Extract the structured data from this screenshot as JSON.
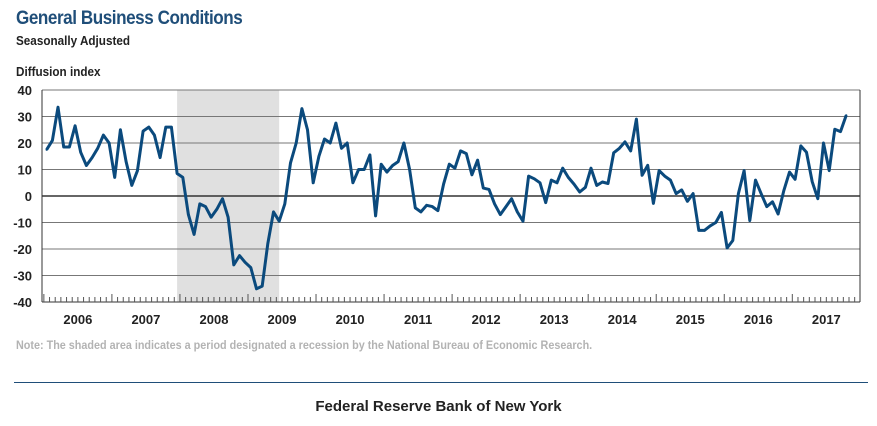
{
  "chart_data": {
    "type": "line",
    "title": "General Business Conditions",
    "subtitle": "Seasonally Adjusted",
    "ylabel": "Diffusion index",
    "xlabel": "",
    "ylim": [
      -40,
      40
    ],
    "yticks": [
      40,
      30,
      20,
      10,
      0,
      -10,
      -20,
      -30,
      -40
    ],
    "x_tick_labels": [
      "2006",
      "2007",
      "2008",
      "2009",
      "2010",
      "2011",
      "2012",
      "2013",
      "2014",
      "2015",
      "2016",
      "2017"
    ],
    "x_start": "2006-01",
    "x_end": "2017-10",
    "frequency": "monthly",
    "grid": true,
    "recession_shading": {
      "start": "2007-12",
      "end": "2009-06",
      "color": "#e0e0e0"
    },
    "line_color": "#0b4a7d",
    "values": [
      17.5,
      21,
      33.5,
      18.5,
      18.5,
      26.5,
      16.5,
      11.5,
      14.5,
      18,
      23,
      20,
      7,
      25,
      13,
      4,
      9.5,
      24.5,
      26,
      23,
      14.5,
      26,
      26,
      8.5,
      7,
      -7,
      -14.5,
      -3,
      -4,
      -8,
      -5,
      -1,
      -8,
      -26,
      -22.5,
      -25,
      -27,
      -35,
      -34,
      -18,
      -6,
      -9.5,
      -3,
      12.5,
      20,
      33,
      25,
      5,
      15,
      21.5,
      20,
      27.5,
      18,
      20,
      5,
      10,
      10,
      15.5,
      -7.5,
      12,
      9,
      11.5,
      13,
      20,
      10,
      -4.5,
      -6,
      -3.5,
      -4,
      -5.5,
      4.5,
      12,
      10.5,
      17,
      16,
      8,
      13.5,
      3,
      2.5,
      -3,
      -7,
      -4,
      -1,
      -6,
      -9.5,
      7.5,
      6.5,
      5,
      -2.5,
      6,
      5,
      10.5,
      7,
      4.5,
      1.5,
      3.3,
      10.5,
      4,
      5.3,
      4.7,
      16.3,
      18,
      20.4,
      17,
      29,
      7.8,
      11.6,
      -2.8,
      9.6,
      7.5,
      6,
      0.9,
      2.3,
      -2,
      0.9,
      -13,
      -13,
      -11.3,
      -10,
      -6.2,
      -19.6,
      -16.8,
      0.9,
      9.6,
      -9.3,
      6,
      0.9,
      -4,
      -2.2,
      -6.8,
      2,
      9,
      6.3,
      18.9,
      16.5,
      5.4,
      -1,
      20,
      9.6,
      25.2,
      24.3,
      30.4
    ]
  },
  "note": "Note: The shaded area indicates a period designated a recession by the National Bureau of Economic Research.",
  "footer": "Federal Reserve Bank of New York"
}
